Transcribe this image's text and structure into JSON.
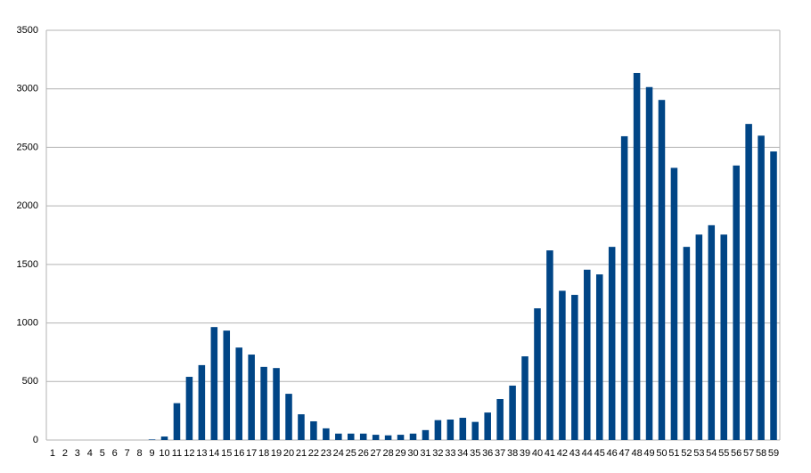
{
  "chart_data": {
    "type": "bar",
    "categories": [
      "1",
      "2",
      "3",
      "4",
      "5",
      "6",
      "7",
      "8",
      "9",
      "10",
      "11",
      "12",
      "13",
      "14",
      "15",
      "16",
      "17",
      "18",
      "19",
      "20",
      "21",
      "22",
      "23",
      "24",
      "25",
      "26",
      "27",
      "28",
      "29",
      "30",
      "31",
      "32",
      "33",
      "34",
      "35",
      "36",
      "37",
      "38",
      "39",
      "40",
      "41",
      "42",
      "43",
      "44",
      "45",
      "46",
      "47",
      "48",
      "49",
      "50",
      "51",
      "52",
      "53",
      "54",
      "55",
      "56",
      "57",
      "58",
      "59"
    ],
    "values": [
      0,
      0,
      0,
      0,
      0,
      0,
      0,
      0,
      5,
      30,
      315,
      540,
      640,
      965,
      935,
      790,
      730,
      625,
      615,
      395,
      220,
      160,
      100,
      55,
      55,
      55,
      45,
      40,
      45,
      55,
      85,
      170,
      175,
      190,
      155,
      235,
      350,
      465,
      715,
      1125,
      1620,
      1275,
      1240,
      1455,
      1415,
      1650,
      2595,
      3135,
      3015,
      2905,
      2325,
      1650,
      1755,
      1835,
      1755,
      2345,
      2700,
      2600,
      2465
    ],
    "color": "#004586",
    "ylim": [
      0,
      3500
    ],
    "yticks": [
      0,
      500,
      1000,
      1500,
      2000,
      2500,
      3000,
      3500
    ],
    "grid": true
  }
}
